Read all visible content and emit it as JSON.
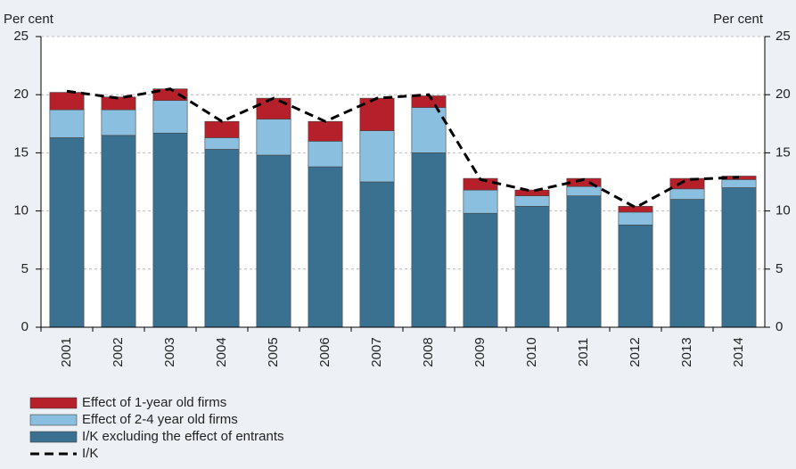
{
  "chart_data": {
    "type": "stacked-bar-line",
    "y_label": "Per cent",
    "y2_label": "Per cent",
    "categories": [
      "2001",
      "2002",
      "2003",
      "2004",
      "2005",
      "2006",
      "2007",
      "2008",
      "2009",
      "2010",
      "2011",
      "2012",
      "2013",
      "2014"
    ],
    "series": [
      {
        "name": "I/K excluding the effect of entrants",
        "color": "#3a7190",
        "values": [
          16.3,
          16.5,
          16.7,
          15.3,
          14.8,
          13.8,
          12.5,
          15.0,
          9.8,
          10.4,
          11.3,
          8.8,
          11.0,
          12.0
        ]
      },
      {
        "name": "Effect of 2-4 year old firms",
        "color": "#8bbfdf",
        "values": [
          2.4,
          2.2,
          2.8,
          1.0,
          3.1,
          2.2,
          4.4,
          3.9,
          2.0,
          0.9,
          0.8,
          1.1,
          0.9,
          0.7
        ]
      },
      {
        "name": "Effect of 1-year old firms",
        "color": "#b5202a",
        "values": [
          1.5,
          1.1,
          1.0,
          1.4,
          1.8,
          1.7,
          2.8,
          1.0,
          1.0,
          0.5,
          0.7,
          0.5,
          0.9,
          0.3
        ]
      },
      {
        "name": "I/K",
        "color": "#000000",
        "line": true,
        "values": [
          20.3,
          19.7,
          20.5,
          17.7,
          19.7,
          17.7,
          19.7,
          20.0,
          12.7,
          11.7,
          12.7,
          10.3,
          12.7,
          12.9
        ]
      }
    ],
    "ylim": [
      0,
      25
    ],
    "yticks": [
      0,
      5,
      10,
      15,
      20,
      25
    ],
    "y2lim": [
      0,
      25
    ],
    "y2ticks": [
      0,
      5,
      10,
      15,
      20,
      25
    ],
    "grid": true
  }
}
